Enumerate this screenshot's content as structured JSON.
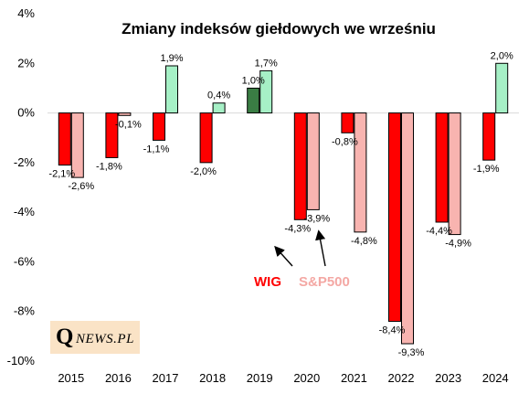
{
  "chart_data": {
    "type": "bar",
    "title": "Zmiany indeksów giełdowych we wrześniu",
    "categories": [
      "2015",
      "2016",
      "2017",
      "2018",
      "2019",
      "2020",
      "2021",
      "2022",
      "2023",
      "2024"
    ],
    "series": [
      {
        "name": "WIG",
        "values": [
          -2.1,
          -1.8,
          -1.1,
          -2.0,
          1.0,
          -4.3,
          -0.8,
          -8.4,
          -4.4,
          -1.9
        ],
        "labels": [
          "-2,1%",
          "-1,8%",
          "-1,1%",
          "-2,0%",
          "1,0%",
          "-4,3%",
          "-0,8%",
          "-8,4%",
          "-4,4%",
          "-1,9%"
        ]
      },
      {
        "name": "S&P500",
        "values": [
          -2.6,
          -0.1,
          1.9,
          0.4,
          1.7,
          -3.9,
          -4.8,
          -9.3,
          -4.9,
          2.0
        ],
        "labels": [
          "-2,6%",
          "-0,1%",
          "1,9%",
          "0,4%",
          "1,7%",
          "-3,9%",
          "-4,8%",
          "-9,3%",
          "-4,9%",
          "2,0%"
        ]
      }
    ],
    "ylim": [
      -10,
      4
    ],
    "yticks": [
      "-10%",
      "-8%",
      "-6%",
      "-4%",
      "-2%",
      "0%",
      "2%",
      "4%"
    ],
    "colors": {
      "wig_negative": "#ff0000",
      "wig_positive": "#3a7d44",
      "sp_negative": "#f8b4b0",
      "sp_positive": "#a6f0c6",
      "legend_wig": "#ff0000",
      "legend_sp": "#f4a8a4"
    },
    "legend": "inside-center"
  },
  "logo": {
    "q": "Q",
    "news": "NEWS.PL"
  }
}
